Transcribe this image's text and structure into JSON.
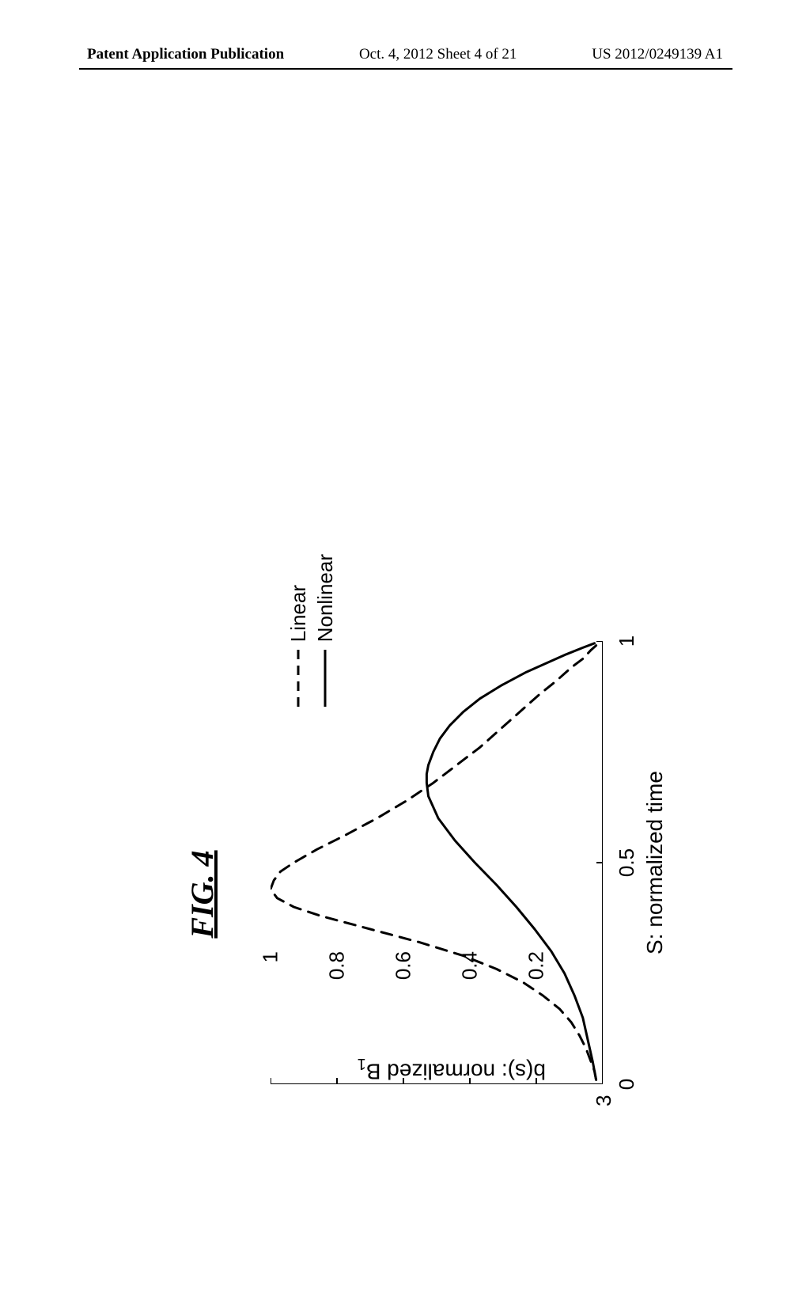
{
  "header": {
    "left": "Patent Application Publication",
    "mid": "Oct. 4, 2012   Sheet 4 of 21",
    "right": "US 2012/0249139 A1"
  },
  "figure": {
    "title": "FIG. 4",
    "xlabel": "S: normalized time",
    "ylabel_prefix": "b(s): normalized B",
    "ylabel_sub": "1",
    "xlim": [
      0,
      1
    ],
    "ylim": [
      0,
      1
    ],
    "xticks": [
      {
        "pos": 0,
        "label": "0"
      },
      {
        "pos": 0.5,
        "label": "0.5"
      },
      {
        "pos": 1,
        "label": "1"
      }
    ],
    "yticks": [
      {
        "pos": 0.2,
        "label": "0.2"
      },
      {
        "pos": 0.4,
        "label": "0.4"
      },
      {
        "pos": 0.6,
        "label": "0.6"
      },
      {
        "pos": 0.8,
        "label": "0.8"
      },
      {
        "pos": 1.0,
        "label": "1"
      }
    ],
    "extra_tick_label": "3",
    "legend": [
      {
        "label": "Linear",
        "style": "dashed"
      },
      {
        "label": "Nonlinear",
        "style": "solid"
      }
    ],
    "series": {
      "linear": {
        "style": "dashed",
        "color": "#000000",
        "width": 3,
        "dash": "14 10",
        "points": [
          [
            0.01,
            0.02
          ],
          [
            0.03,
            0.025
          ],
          [
            0.05,
            0.035
          ],
          [
            0.08,
            0.05
          ],
          [
            0.11,
            0.07
          ],
          [
            0.14,
            0.095
          ],
          [
            0.17,
            0.13
          ],
          [
            0.2,
            0.18
          ],
          [
            0.23,
            0.24
          ],
          [
            0.26,
            0.32
          ],
          [
            0.29,
            0.42
          ],
          [
            0.32,
            0.55
          ],
          [
            0.35,
            0.7
          ],
          [
            0.38,
            0.85
          ],
          [
            0.4,
            0.93
          ],
          [
            0.42,
            0.98
          ],
          [
            0.44,
            1.0
          ],
          [
            0.46,
            0.99
          ],
          [
            0.48,
            0.97
          ],
          [
            0.5,
            0.93
          ],
          [
            0.53,
            0.86
          ],
          [
            0.56,
            0.78
          ],
          [
            0.6,
            0.68
          ],
          [
            0.64,
            0.59
          ],
          [
            0.68,
            0.51
          ],
          [
            0.72,
            0.44
          ],
          [
            0.76,
            0.37
          ],
          [
            0.8,
            0.31
          ],
          [
            0.84,
            0.25
          ],
          [
            0.88,
            0.19
          ],
          [
            0.91,
            0.14
          ],
          [
            0.94,
            0.095
          ],
          [
            0.96,
            0.06
          ],
          [
            0.98,
            0.035
          ],
          [
            0.99,
            0.02
          ]
        ]
      },
      "nonlinear": {
        "style": "solid",
        "color": "#000000",
        "width": 3,
        "points": [
          [
            0.01,
            0.02
          ],
          [
            0.05,
            0.03
          ],
          [
            0.1,
            0.045
          ],
          [
            0.15,
            0.06
          ],
          [
            0.2,
            0.085
          ],
          [
            0.25,
            0.115
          ],
          [
            0.3,
            0.155
          ],
          [
            0.35,
            0.205
          ],
          [
            0.4,
            0.26
          ],
          [
            0.45,
            0.32
          ],
          [
            0.5,
            0.385
          ],
          [
            0.55,
            0.445
          ],
          [
            0.6,
            0.495
          ],
          [
            0.65,
            0.525
          ],
          [
            0.68,
            0.53
          ],
          [
            0.7,
            0.53
          ],
          [
            0.72,
            0.525
          ],
          [
            0.75,
            0.51
          ],
          [
            0.78,
            0.49
          ],
          [
            0.81,
            0.46
          ],
          [
            0.84,
            0.42
          ],
          [
            0.87,
            0.37
          ],
          [
            0.9,
            0.305
          ],
          [
            0.93,
            0.23
          ],
          [
            0.95,
            0.17
          ],
          [
            0.97,
            0.11
          ],
          [
            0.985,
            0.06
          ],
          [
            0.995,
            0.025
          ]
        ]
      }
    },
    "axis_color": "#000000",
    "axis_width": 2,
    "background": "#ffffff"
  }
}
